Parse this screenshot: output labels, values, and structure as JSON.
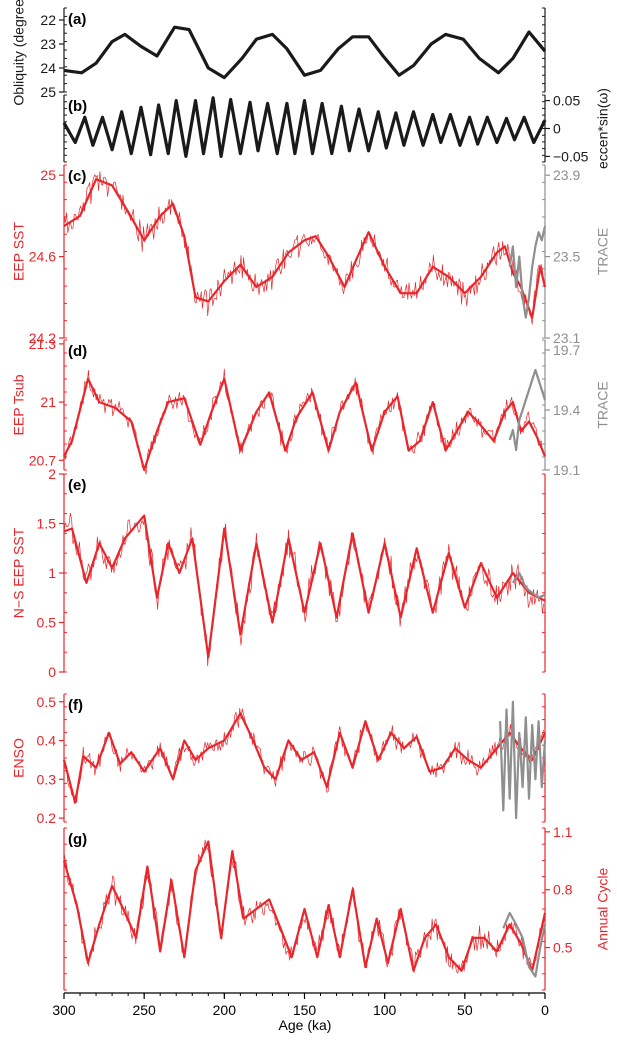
{
  "figure": {
    "xlabel": "Age (ka)",
    "x_ticks": [
      300,
      250,
      200,
      150,
      100,
      50,
      0
    ]
  },
  "colors": {
    "black": "#1a1a1a",
    "red": "#e8262b",
    "gray": "#8f8f8f"
  },
  "chart_data": [
    {
      "panel": "(a)",
      "type": "line",
      "ylabel_left": "Obliquity (degree)",
      "y_ticks_left": [
        22,
        23,
        24,
        25
      ],
      "ylim_left": [
        25,
        21.5
      ],
      "axis_color": "black",
      "series": [
        {
          "color": "black",
          "x": [
            300,
            289,
            280,
            270,
            262,
            252,
            242,
            231,
            222,
            210,
            200,
            189,
            180,
            170,
            161,
            150,
            140,
            129,
            120,
            110,
            101,
            91,
            82,
            71,
            62,
            51,
            41,
            29,
            20,
            10,
            0
          ],
          "y": [
            24.1,
            24.2,
            23.8,
            22.9,
            22.6,
            23.1,
            23.5,
            22.3,
            22.4,
            24.0,
            24.4,
            23.6,
            22.8,
            22.6,
            23.2,
            24.3,
            24.1,
            23.2,
            22.7,
            22.7,
            23.5,
            24.3,
            23.9,
            23.0,
            22.6,
            22.8,
            23.6,
            24.2,
            23.6,
            22.5,
            23.3
          ]
        }
      ]
    },
    {
      "panel": "(b)",
      "type": "line",
      "ylabel_right": "eccen*sin(ω)",
      "y_ticks_right": [
        "0.05",
        "0",
        "−0.05"
      ],
      "y_tick_values_right": [
        0.05,
        0,
        -0.05
      ],
      "ylim_right": [
        -0.06,
        0.06
      ],
      "axis_color": "black",
      "series": [
        {
          "color": "black",
          "x": [
            300,
            293,
            287,
            282,
            276,
            270,
            264,
            258,
            252,
            246,
            241,
            235,
            230,
            224,
            218,
            213,
            207,
            202,
            196,
            190,
            184,
            179,
            173,
            167,
            161,
            156,
            150,
            145,
            139,
            133,
            127,
            122,
            116,
            110,
            104,
            99,
            93,
            88,
            82,
            76,
            70,
            65,
            59,
            53,
            47,
            42,
            36,
            30,
            24,
            19,
            13,
            7,
            0
          ],
          "y": [
            0.01,
            -0.025,
            0.02,
            -0.03,
            0.02,
            -0.038,
            0.03,
            -0.045,
            0.038,
            -0.047,
            0.042,
            -0.045,
            0.05,
            -0.05,
            0.05,
            -0.045,
            0.055,
            -0.05,
            0.052,
            -0.045,
            0.047,
            -0.04,
            0.045,
            -0.045,
            0.045,
            -0.045,
            0.05,
            -0.045,
            0.045,
            -0.045,
            0.04,
            -0.04,
            0.035,
            -0.04,
            0.03,
            -0.035,
            0.028,
            -0.03,
            0.03,
            -0.03,
            0.025,
            -0.025,
            0.025,
            -0.03,
            0.02,
            -0.028,
            0.02,
            -0.025,
            0.018,
            -0.02,
            0.02,
            -0.025,
            0.015
          ]
        }
      ]
    },
    {
      "panel": "(c)",
      "type": "line",
      "ylabel_left": "EEP SST",
      "y_ticks_left": [
        "24.2",
        "24.6",
        "25"
      ],
      "y_tick_values_left": [
        24.2,
        24.6,
        25
      ],
      "ylim_left": [
        24.2,
        25.05
      ],
      "ylabel_right": "TRACE",
      "y_ticks_right": [
        "23.1",
        "23.5",
        "23.9"
      ],
      "y_tick_values_right": [
        23.1,
        23.5,
        23.9
      ],
      "ylim_right": [
        23.1,
        23.95
      ],
      "axis_color": "red",
      "right_axis_color": "gray",
      "series": [
        {
          "role": "smoothed",
          "color": "red",
          "x": [
            300,
            290,
            280,
            270,
            260,
            250,
            240,
            232,
            225,
            218,
            210,
            200,
            190,
            180,
            170,
            160,
            150,
            143,
            135,
            125,
            118,
            110,
            100,
            90,
            80,
            70,
            60,
            50,
            40,
            30,
            25,
            20,
            15,
            8,
            3,
            0
          ],
          "y": [
            24.75,
            24.8,
            24.98,
            24.95,
            24.82,
            24.68,
            24.8,
            24.86,
            24.7,
            24.4,
            24.38,
            24.48,
            24.56,
            24.45,
            24.5,
            24.62,
            24.68,
            24.7,
            24.6,
            24.45,
            24.58,
            24.72,
            24.55,
            24.42,
            24.42,
            24.55,
            24.5,
            24.42,
            24.5,
            24.62,
            24.65,
            24.52,
            24.45,
            24.3,
            24.55,
            24.45
          ]
        },
        {
          "role": "TRACE",
          "axis": "right",
          "color": "gray",
          "x": [
            22,
            20,
            18,
            16,
            14,
            12,
            10,
            8,
            6,
            4,
            2,
            0
          ],
          "y": [
            23.45,
            23.55,
            23.35,
            23.5,
            23.3,
            23.2,
            23.3,
            23.45,
            23.55,
            23.62,
            23.58,
            23.65
          ]
        }
      ]
    },
    {
      "panel": "(d)",
      "type": "line",
      "ylabel_left": "EEP Tsub",
      "y_ticks_left": [
        "20.7",
        "21",
        "21.3"
      ],
      "y_tick_values_left": [
        20.7,
        21,
        21.3
      ],
      "ylim_left": [
        20.65,
        21.32
      ],
      "ylabel_right": "TRACE",
      "y_ticks_right": [
        "19.1",
        "19.4",
        "19.7"
      ],
      "y_tick_values_right": [
        19.1,
        19.4,
        19.7
      ],
      "ylim_right": [
        19.1,
        19.75
      ],
      "axis_color": "red",
      "right_axis_color": "gray",
      "series": [
        {
          "role": "smoothed",
          "color": "red",
          "x": [
            300,
            295,
            285,
            278,
            268,
            258,
            250,
            242,
            235,
            225,
            215,
            208,
            200,
            190,
            180,
            172,
            162,
            155,
            145,
            135,
            128,
            118,
            108,
            100,
            92,
            85,
            78,
            70,
            62,
            55,
            48,
            40,
            32,
            25,
            20,
            15,
            10,
            5,
            0
          ],
          "y": [
            20.72,
            20.8,
            21.12,
            21.0,
            20.97,
            20.9,
            20.65,
            20.85,
            21.0,
            21.02,
            20.78,
            20.95,
            21.12,
            20.75,
            20.95,
            21.05,
            20.75,
            20.92,
            21.05,
            20.75,
            20.95,
            21.1,
            20.75,
            20.95,
            21.03,
            20.75,
            20.8,
            21.0,
            20.75,
            20.85,
            20.95,
            20.88,
            20.8,
            20.95,
            21.0,
            20.85,
            20.9,
            20.82,
            20.72
          ]
        },
        {
          "role": "TRACE",
          "axis": "right",
          "color": "gray",
          "x": [
            22,
            20,
            18,
            16,
            14,
            12,
            10,
            8,
            6,
            4,
            2,
            0
          ],
          "y": [
            19.25,
            19.3,
            19.2,
            19.35,
            19.4,
            19.45,
            19.5,
            19.55,
            19.6,
            19.55,
            19.5,
            19.45
          ]
        }
      ]
    },
    {
      "panel": "(e)",
      "type": "line",
      "ylabel_left": "N−S EEP SST",
      "y_ticks_left": [
        "0",
        "0.5",
        "1",
        "1.5",
        "2"
      ],
      "y_tick_values_left": [
        0,
        0.5,
        1,
        1.5,
        2
      ],
      "ylim_left": [
        0,
        2
      ],
      "axis_color": "red",
      "series": [
        {
          "role": "smoothed",
          "color": "red",
          "x": [
            300,
            295,
            286,
            278,
            270,
            262,
            250,
            242,
            235,
            228,
            220,
            210,
            200,
            190,
            180,
            170,
            160,
            150,
            140,
            130,
            120,
            110,
            100,
            90,
            80,
            70,
            60,
            50,
            40,
            30,
            20,
            10,
            0
          ],
          "y": [
            1.42,
            1.45,
            0.9,
            1.3,
            1.05,
            1.35,
            1.58,
            0.75,
            1.3,
            1.0,
            1.35,
            0.15,
            1.45,
            0.38,
            1.3,
            0.5,
            1.35,
            0.6,
            1.3,
            0.55,
            1.4,
            0.6,
            1.3,
            0.55,
            1.25,
            0.6,
            1.2,
            0.65,
            1.1,
            0.75,
            1.0,
            0.8,
            0.72
          ]
        },
        {
          "role": "TRACE",
          "color": "gray",
          "x": [
            20,
            16,
            12,
            8,
            4,
            0
          ],
          "y": [
            0.9,
            1.0,
            0.85,
            0.8,
            0.75,
            0.78
          ]
        }
      ]
    },
    {
      "panel": "(f)",
      "type": "line",
      "ylabel_left": "ENSO",
      "y_ticks_left": [
        "0.2",
        "0.3",
        "0.4",
        "0.5"
      ],
      "y_tick_values_left": [
        0.2,
        0.3,
        0.4,
        0.5
      ],
      "ylim_left": [
        0.19,
        0.52
      ],
      "axis_color": "red",
      "series": [
        {
          "role": "smoothed",
          "color": "red",
          "x": [
            300,
            293,
            288,
            280,
            272,
            265,
            258,
            250,
            240,
            232,
            225,
            218,
            210,
            200,
            190,
            182,
            175,
            168,
            160,
            152,
            144,
            136,
            128,
            120,
            112,
            104,
            96,
            88,
            80,
            72,
            64,
            56,
            48,
            40,
            30,
            22,
            15,
            8,
            0
          ],
          "y": [
            0.35,
            0.24,
            0.36,
            0.33,
            0.42,
            0.34,
            0.37,
            0.32,
            0.38,
            0.3,
            0.4,
            0.35,
            0.38,
            0.4,
            0.47,
            0.4,
            0.33,
            0.3,
            0.4,
            0.35,
            0.37,
            0.28,
            0.42,
            0.33,
            0.45,
            0.35,
            0.42,
            0.38,
            0.41,
            0.32,
            0.33,
            0.38,
            0.35,
            0.33,
            0.38,
            0.42,
            0.38,
            0.35,
            0.42
          ]
        },
        {
          "role": "TRACE",
          "color": "gray",
          "x": [
            28,
            26,
            24,
            22,
            20,
            18,
            16,
            14,
            12,
            10,
            8,
            6,
            4,
            2,
            0
          ],
          "y": [
            0.45,
            0.22,
            0.48,
            0.25,
            0.5,
            0.2,
            0.42,
            0.28,
            0.46,
            0.25,
            0.44,
            0.3,
            0.45,
            0.28,
            0.4
          ]
        }
      ]
    },
    {
      "panel": "(g)",
      "type": "line",
      "ylabel_right": "Annual Cycle",
      "y_ticks_right": [
        "0.5",
        "0.8",
        "1.1"
      ],
      "y_tick_values_right": [
        0.5,
        0.8,
        1.1
      ],
      "ylim_right": [
        0.28,
        1.12
      ],
      "axis_color": "red",
      "series": [
        {
          "role": "smoothed",
          "color": "red",
          "x": [
            300,
            292,
            285,
            278,
            270,
            263,
            255,
            248,
            240,
            233,
            225,
            218,
            210,
            202,
            195,
            188,
            180,
            172,
            165,
            158,
            150,
            142,
            135,
            128,
            120,
            112,
            105,
            98,
            90,
            82,
            75,
            68,
            60,
            52,
            45,
            38,
            30,
            22,
            15,
            8,
            0
          ],
          "y": [
            0.95,
            0.72,
            0.42,
            0.62,
            0.82,
            0.7,
            0.55,
            0.92,
            0.48,
            0.85,
            0.45,
            0.9,
            1.05,
            0.55,
            1.0,
            0.65,
            0.7,
            0.75,
            0.6,
            0.45,
            0.7,
            0.45,
            0.72,
            0.45,
            0.8,
            0.4,
            0.65,
            0.42,
            0.7,
            0.38,
            0.55,
            0.62,
            0.45,
            0.38,
            0.55,
            0.55,
            0.48,
            0.62,
            0.52,
            0.38,
            0.68
          ]
        },
        {
          "role": "TRACE",
          "color": "gray",
          "x": [
            26,
            22,
            18,
            14,
            10,
            6,
            3,
            0
          ],
          "y": [
            0.6,
            0.68,
            0.62,
            0.55,
            0.4,
            0.35,
            0.5,
            0.62
          ]
        }
      ]
    }
  ]
}
